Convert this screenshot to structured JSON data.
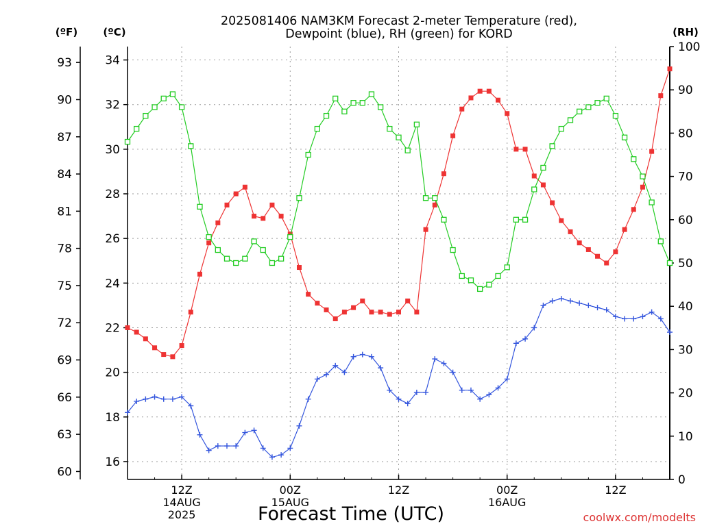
{
  "title_line1": "2025081406 NAM3KM Forecast 2-meter Temperature (red),",
  "title_line2": "Dewpoint (blue), RH (green) for KORD",
  "left_unit_f": "(ºF)",
  "left_unit_c": "(ºC)",
  "right_unit": "(RH)",
  "xlabel": "Forecast Time (UTC)",
  "credit": "coolwx.com/modelts",
  "colors": {
    "temperature": "#ee3333",
    "dewpoint": "#3355dd",
    "rh": "#22cc22",
    "grid": "#9a9a9a",
    "credit": "#dd3333"
  },
  "chart_data": {
    "type": "line",
    "x_unit": "forecast hour (hours after 2025-08-14 06Z)",
    "x": [
      0,
      1,
      2,
      3,
      4,
      5,
      6,
      7,
      8,
      9,
      10,
      11,
      12,
      13,
      14,
      15,
      16,
      17,
      18,
      19,
      20,
      21,
      22,
      23,
      24,
      25,
      26,
      27,
      28,
      29,
      30,
      31,
      32,
      33,
      34,
      35,
      36,
      37,
      38,
      39,
      40,
      41,
      42,
      43,
      44,
      45,
      46,
      47,
      48,
      49,
      50,
      51,
      52,
      53,
      54,
      55,
      56,
      57,
      58,
      59,
      60
    ],
    "xlim": [
      0,
      60
    ],
    "x_ticks": [
      {
        "hour": 6,
        "lines": [
          "12Z",
          "14AUG",
          "2025"
        ]
      },
      {
        "hour": 18,
        "lines": [
          "00Z",
          "15AUG"
        ]
      },
      {
        "hour": 30,
        "lines": [
          "12Z"
        ]
      },
      {
        "hour": 42,
        "lines": [
          "00Z",
          "16AUG"
        ]
      },
      {
        "hour": 54,
        "lines": [
          "12Z"
        ]
      }
    ],
    "y_left_c": {
      "label": "(ºC)",
      "range": [
        15.2,
        34.6
      ],
      "ticks": [
        16,
        18,
        20,
        22,
        24,
        26,
        28,
        30,
        32,
        34
      ]
    },
    "y_left_f": {
      "label": "(ºF)",
      "ticks": [
        60,
        63,
        66,
        69,
        72,
        75,
        78,
        81,
        84,
        87,
        90,
        93
      ]
    },
    "y_right": {
      "label": "(RH)",
      "range": [
        0,
        100
      ],
      "ticks": [
        0,
        10,
        20,
        30,
        40,
        50,
        60,
        70,
        80,
        90,
        100
      ]
    },
    "grid": true,
    "series": [
      {
        "name": "Temperature",
        "axis": "left_c",
        "color": "#ee3333",
        "marker": "filled-square",
        "values": [
          22.0,
          21.8,
          21.5,
          21.1,
          20.8,
          20.7,
          21.2,
          22.7,
          24.4,
          25.8,
          26.7,
          27.5,
          28.0,
          28.3,
          27.0,
          26.9,
          27.5,
          27.0,
          26.2,
          24.7,
          23.5,
          23.1,
          22.8,
          22.4,
          22.7,
          22.9,
          23.2,
          22.7,
          22.7,
          22.6,
          22.7,
          23.2,
          22.7,
          26.4,
          27.5,
          28.9,
          30.6,
          31.8,
          32.3,
          32.6,
          32.6,
          32.2,
          31.6,
          30.0,
          30.0,
          28.8,
          28.4,
          27.6,
          26.8,
          26.3,
          25.8,
          25.5,
          25.2,
          24.9,
          25.4,
          26.4,
          27.3,
          28.3,
          29.9,
          32.4,
          33.6
        ]
      },
      {
        "name": "Dewpoint",
        "axis": "left_c",
        "color": "#3355dd",
        "marker": "plus",
        "values": [
          18.2,
          18.7,
          18.8,
          18.9,
          18.8,
          18.8,
          18.9,
          18.5,
          17.2,
          16.5,
          16.7,
          16.7,
          16.7,
          17.3,
          17.4,
          16.6,
          16.2,
          16.3,
          16.6,
          17.6,
          18.8,
          19.7,
          19.9,
          20.3,
          20.0,
          20.7,
          20.8,
          20.7,
          20.2,
          19.2,
          18.8,
          18.6,
          19.1,
          19.1,
          20.6,
          20.4,
          20.0,
          19.2,
          19.2,
          18.8,
          19.0,
          19.3,
          19.7,
          21.3,
          21.5,
          22.0,
          23.0,
          23.2,
          23.3,
          23.2,
          23.1,
          23.0,
          22.9,
          22.8,
          22.5,
          22.4,
          22.4,
          22.5,
          22.7,
          22.4,
          21.8
        ]
      },
      {
        "name": "RH",
        "axis": "right",
        "color": "#22cc22",
        "marker": "open-square",
        "values": [
          78,
          81,
          84,
          86,
          88,
          89,
          86,
          77,
          63,
          56,
          53,
          51,
          50,
          51,
          55,
          53,
          50,
          51,
          56,
          65,
          75,
          81,
          84,
          88,
          85,
          87,
          87,
          89,
          86,
          81,
          79,
          76,
          82,
          65,
          65,
          60,
          53,
          47,
          46,
          44,
          45,
          47,
          49,
          60,
          60,
          67,
          72,
          77,
          81,
          83,
          85,
          86,
          87,
          88,
          84,
          79,
          74,
          70,
          64,
          55,
          50
        ]
      }
    ]
  }
}
